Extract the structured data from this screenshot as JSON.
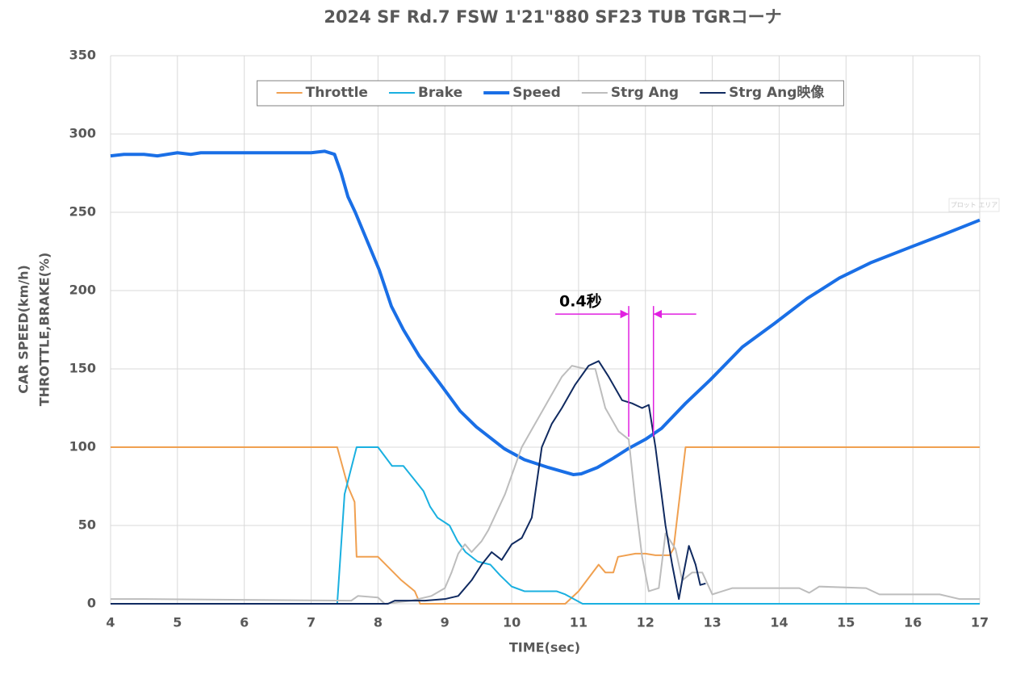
{
  "chart_data": {
    "type": "line",
    "title": "2024 SF Rd.7 FSW 1'21\"880 SF23 TUB  TGRコーナ",
    "xlabel": "TIME(sec)",
    "ylabel": [
      "CAR SPEED(km/h)",
      "THROTTLE,BRAKE(%)"
    ],
    "xlim": [
      4,
      17
    ],
    "xticks": [
      4,
      5,
      6,
      7,
      8,
      9,
      10,
      11,
      12,
      13,
      14,
      15,
      16,
      17
    ],
    "ylim": [
      0,
      350
    ],
    "yticks": [
      0,
      50,
      100,
      150,
      200,
      250,
      300,
      350
    ],
    "grid": true,
    "legend": "top",
    "plot_area_label": "プロット エリア",
    "annotation": {
      "text": "0.4秒",
      "x": [
        11.75,
        12.12
      ],
      "y": 185,
      "color": "#e020e0"
    },
    "series": [
      {
        "name": "Throttle",
        "color": "#f0a050",
        "width": 2,
        "x": [
          4,
          7.39,
          7.55,
          7.65,
          7.68,
          8.0,
          8.35,
          8.55,
          8.63,
          10.8,
          11.0,
          11.3,
          11.4,
          11.52,
          11.59,
          11.85,
          12.0,
          12.15,
          12.36,
          12.42,
          12.6,
          17
        ],
        "values": [
          100,
          100,
          75,
          65,
          30,
          30,
          15,
          8,
          0,
          0,
          8,
          25,
          20,
          20,
          30,
          32,
          32,
          31,
          31,
          35,
          100,
          100
        ]
      },
      {
        "name": "Brake",
        "color": "#1ab0e0",
        "width": 2,
        "x": [
          4,
          7.39,
          7.5,
          7.68,
          8.0,
          8.21,
          8.38,
          8.53,
          8.68,
          8.78,
          8.89,
          9.07,
          9.19,
          9.31,
          9.49,
          9.68,
          9.83,
          10.0,
          10.19,
          10.67,
          10.8,
          11.06,
          17
        ],
        "values": [
          0,
          0,
          70,
          100,
          100,
          88,
          88,
          80,
          72,
          62,
          55,
          50,
          40,
          33,
          27,
          25,
          18,
          11,
          8,
          8,
          6,
          0,
          0
        ]
      },
      {
        "name": "Speed",
        "color": "#1a6fe6",
        "width": 4,
        "x": [
          4,
          4.2,
          4.5,
          4.7,
          5.0,
          5.2,
          5.35,
          7.0,
          7.2,
          7.35,
          7.45,
          7.55,
          7.66,
          8.02,
          8.2,
          8.38,
          8.62,
          8.92,
          9.23,
          9.47,
          9.71,
          9.89,
          10.19,
          10.55,
          10.92,
          11.04,
          11.28,
          11.52,
          11.76,
          12.0,
          12.24,
          12.6,
          12.97,
          13.45,
          13.93,
          14.42,
          14.9,
          15.38,
          15.98,
          16.47,
          17
        ],
        "values": [
          286,
          287,
          287,
          286,
          288,
          287,
          288,
          288,
          289,
          287,
          275,
          260,
          250,
          213,
          190,
          175,
          158,
          141,
          123,
          113,
          105,
          99,
          92,
          87,
          82.5,
          83,
          87,
          93,
          99.5,
          105,
          112,
          128,
          143,
          164,
          179,
          195,
          208,
          218,
          228,
          236,
          245
        ]
      },
      {
        "name": "Strg Ang",
        "color": "#bdbdbd",
        "width": 2,
        "x": [
          4,
          4.5,
          7.6,
          7.7,
          8.0,
          8.1,
          8.5,
          8.8,
          9.0,
          9.1,
          9.2,
          9.3,
          9.4,
          9.55,
          9.65,
          9.9,
          10.15,
          10.35,
          10.55,
          10.75,
          10.9,
          11.1,
          11.25,
          11.4,
          11.6,
          11.75,
          11.85,
          11.95,
          12.05,
          12.2,
          12.3,
          12.45,
          12.55,
          12.7,
          12.85,
          13.0,
          13.3,
          14.3,
          14.45,
          14.6,
          15.3,
          15.5,
          16.4,
          16.7,
          17
        ],
        "values": [
          3,
          3,
          2,
          5,
          4,
          0,
          2,
          5,
          10,
          20,
          32,
          38,
          33,
          40,
          47,
          70,
          100,
          115,
          130,
          145,
          152,
          150,
          150,
          125,
          110,
          105,
          65,
          30,
          8,
          10,
          45,
          35,
          15,
          20,
          20,
          6,
          10,
          10,
          7,
          11,
          10,
          6,
          6,
          3,
          3
        ]
      },
      {
        "name": "Strg Ang映像",
        "color": "#102a60",
        "width": 2,
        "x": [
          4,
          8.15,
          8.25,
          8.7,
          9.0,
          9.2,
          9.4,
          9.55,
          9.7,
          9.85,
          10.0,
          10.15,
          10.3,
          10.45,
          10.6,
          10.75,
          10.95,
          11.15,
          11.3,
          11.45,
          11.65,
          11.8,
          11.95,
          12.05,
          12.15,
          12.3,
          12.4,
          12.5,
          12.55,
          12.65,
          12.75,
          12.82,
          12.9
        ],
        "values": [
          0,
          0,
          2,
          2,
          3,
          5,
          15,
          25,
          33,
          28,
          38,
          42,
          55,
          100,
          115,
          125,
          140,
          152,
          155,
          145,
          130,
          128,
          125,
          127,
          100,
          50,
          25,
          3,
          15,
          37,
          25,
          12,
          13
        ]
      }
    ]
  }
}
